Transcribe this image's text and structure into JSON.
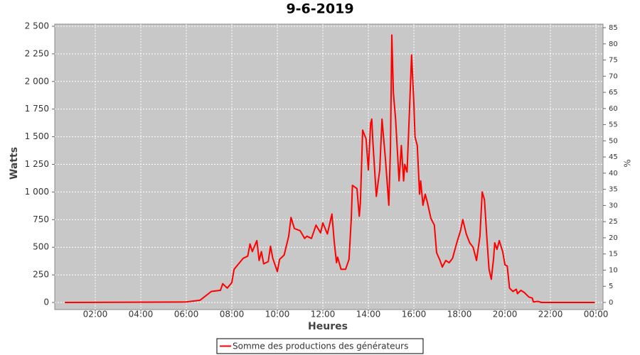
{
  "chart_data": {
    "type": "line",
    "title": "9-6-2019",
    "xlabel": "Heures",
    "ylabel": "Watts",
    "y2label": "%",
    "x": [
      0.66,
      6.0,
      6.6,
      7.1,
      7.5,
      7.6,
      7.8,
      8.0,
      8.1,
      8.5,
      8.7,
      8.8,
      8.9,
      9.1,
      9.2,
      9.3,
      9.4,
      9.6,
      9.7,
      9.8,
      10.0,
      10.1,
      10.3,
      10.5,
      10.6,
      10.75,
      11.0,
      11.2,
      11.3,
      11.5,
      11.7,
      11.9,
      12.0,
      12.2,
      12.4,
      12.5,
      12.6,
      12.65,
      12.8,
      13.0,
      13.15,
      13.25,
      13.3,
      13.5,
      13.6,
      13.65,
      13.75,
      13.9,
      14.0,
      14.1,
      14.15,
      14.2,
      14.35,
      14.5,
      14.6,
      14.75,
      14.9,
      14.97,
      15.03,
      15.1,
      15.2,
      15.35,
      15.45,
      15.55,
      15.6,
      15.7,
      15.8,
      15.9,
      16.0,
      16.05,
      16.15,
      16.25,
      16.3,
      16.4,
      16.5,
      16.6,
      16.75,
      16.9,
      17.0,
      17.15,
      17.25,
      17.4,
      17.55,
      17.7,
      17.9,
      18.05,
      18.15,
      18.3,
      18.45,
      18.6,
      18.75,
      18.9,
      19.0,
      19.1,
      19.2,
      19.3,
      19.4,
      19.5,
      19.55,
      19.65,
      19.75,
      19.9,
      20.0,
      20.1,
      20.2,
      20.35,
      20.5,
      20.55,
      20.7,
      20.85,
      21.05,
      21.2,
      21.25,
      21.45,
      21.6,
      23.95
    ],
    "series": [
      {
        "name": "Somme des productions des  générateurs",
        "color": "#ff0000",
        "values": [
          0,
          5,
          20,
          100,
          110,
          170,
          130,
          180,
          300,
          400,
          420,
          530,
          460,
          560,
          380,
          460,
          350,
          370,
          510,
          400,
          280,
          390,
          430,
          600,
          770,
          670,
          650,
          580,
          600,
          580,
          700,
          630,
          720,
          620,
          800,
          550,
          360,
          410,
          300,
          300,
          390,
          760,
          1060,
          1030,
          780,
          900,
          1560,
          1480,
          1200,
          1620,
          1660,
          1450,
          960,
          1200,
          1660,
          1300,
          880,
          1400,
          2420,
          1900,
          1650,
          1100,
          1420,
          1100,
          1250,
          1180,
          1700,
          2240,
          1800,
          1500,
          1420,
          980,
          1100,
          880,
          980,
          900,
          760,
          700,
          450,
          380,
          320,
          380,
          360,
          400,
          550,
          650,
          750,
          620,
          540,
          500,
          380,
          600,
          1000,
          930,
          600,
          300,
          210,
          400,
          540,
          480,
          560,
          460,
          340,
          330,
          130,
          100,
          120,
          80,
          110,
          90,
          50,
          40,
          5,
          10,
          0,
          0
        ]
      }
    ],
    "xlim": [
      0.22,
      24.31
    ],
    "xticks": [
      {
        "value": 2,
        "label": "02:00"
      },
      {
        "value": 4,
        "label": "04:00"
      },
      {
        "value": 6,
        "label": "06:00"
      },
      {
        "value": 8,
        "label": "08:00"
      },
      {
        "value": 10,
        "label": "10:00"
      },
      {
        "value": 12,
        "label": "12:00"
      },
      {
        "value": 14,
        "label": "14:00"
      },
      {
        "value": 16,
        "label": "16:00"
      },
      {
        "value": 18,
        "label": "18:00"
      },
      {
        "value": 20,
        "label": "20:00"
      },
      {
        "value": 22,
        "label": "22:00"
      },
      {
        "value": 24,
        "label": "00:00"
      }
    ],
    "ylim": [
      -64,
      2519
    ],
    "yticks": [
      0,
      250,
      500,
      750,
      {
        "value": 1000,
        "label": "1 000"
      },
      {
        "value": 1250,
        "label": "1 250"
      },
      {
        "value": 1500,
        "label": "1 500"
      },
      {
        "value": 1750,
        "label": "1 750"
      },
      {
        "value": 2000,
        "label": "2 000"
      },
      {
        "value": 2250,
        "label": "2 250"
      },
      {
        "value": 2500,
        "label": "2 500"
      }
    ],
    "y2lim": [
      -2.2,
      86.1
    ],
    "y2ticks": [
      0,
      5,
      10,
      15,
      20,
      25,
      30,
      35,
      40,
      45,
      50,
      55,
      60,
      65,
      70,
      75,
      80,
      85
    ],
    "grid": true,
    "legend": "bottom"
  }
}
